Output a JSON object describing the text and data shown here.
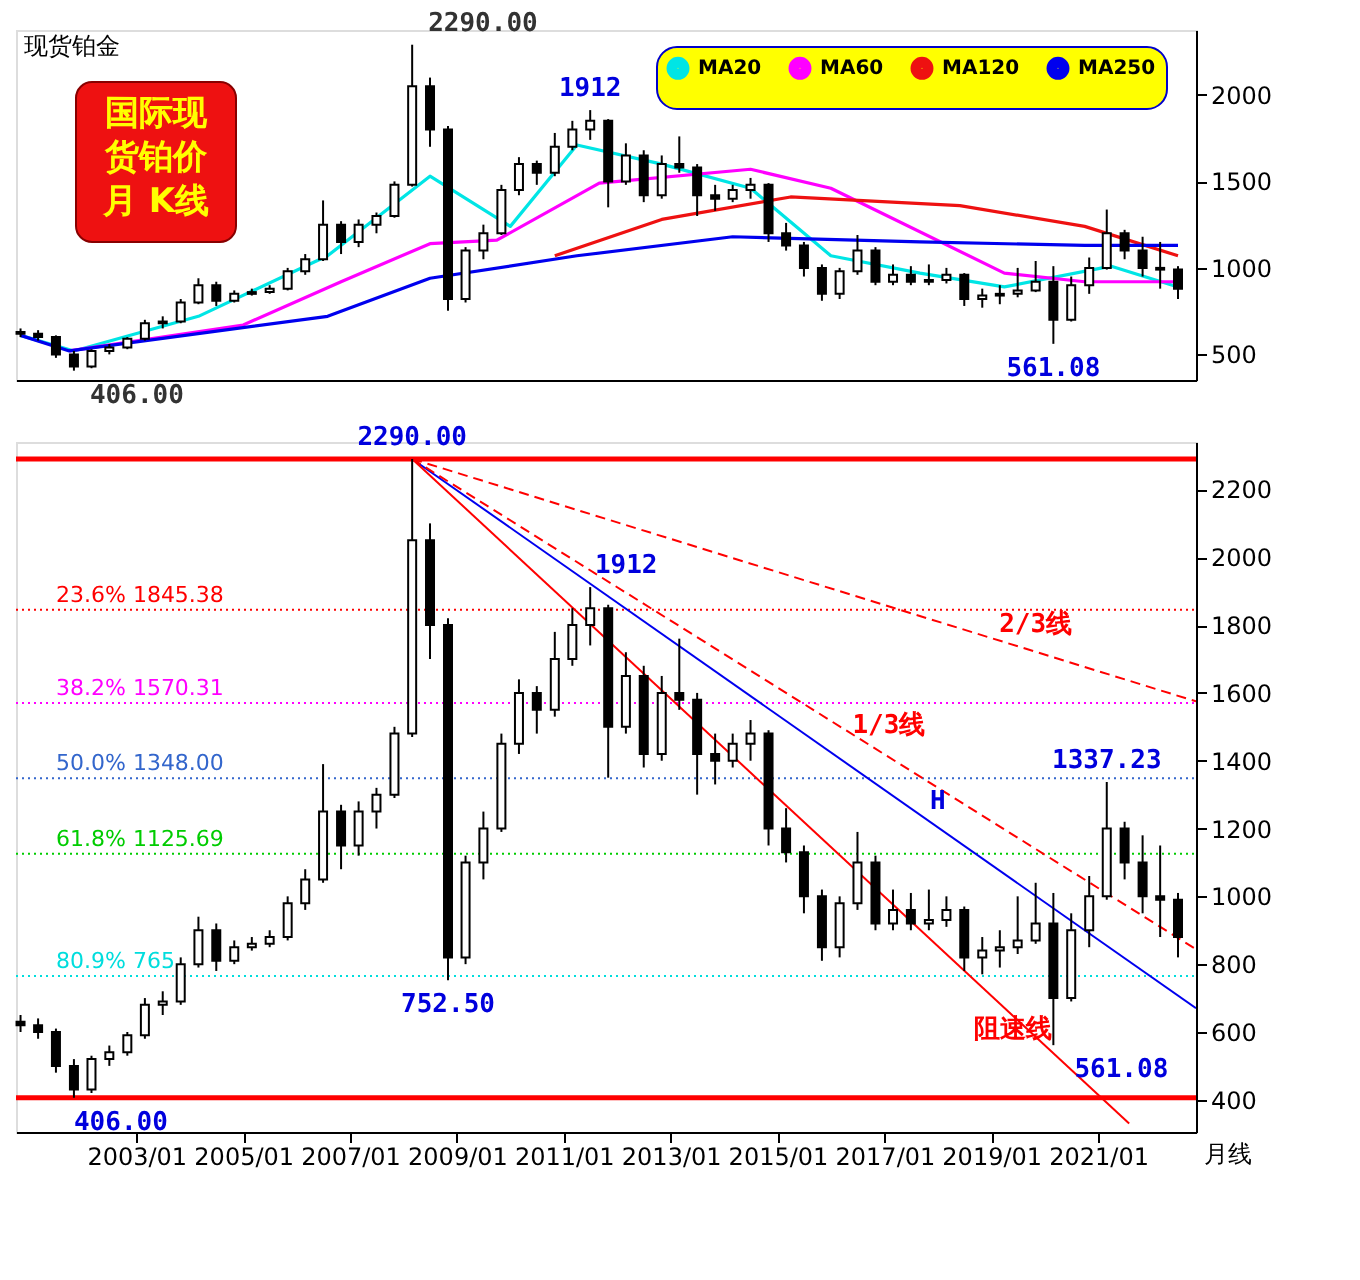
{
  "chart_data": [
    {
      "type": "candlestick",
      "title": "现货铂金",
      "x": [
        "2000-11",
        "2001-03",
        "2001-07",
        "2001-11",
        "2002-03",
        "2002-07",
        "2002-11",
        "2003-03",
        "2003-07",
        "2003-11",
        "2004-03",
        "2004-07",
        "2004-11",
        "2005-03",
        "2005-07",
        "2005-11",
        "2006-03",
        "2006-07",
        "2006-11",
        "2007-03",
        "2007-07",
        "2007-11",
        "2008-03",
        "2008-07",
        "2008-11",
        "2009-03",
        "2009-07",
        "2009-11",
        "2010-03",
        "2010-07",
        "2010-11",
        "2011-03",
        "2011-07",
        "2011-11",
        "2012-03",
        "2012-07",
        "2012-11",
        "2013-03",
        "2013-07",
        "2013-11",
        "2014-03",
        "2014-07",
        "2014-11",
        "2015-03",
        "2015-07",
        "2015-11",
        "2016-03",
        "2016-07",
        "2016-11",
        "2017-03",
        "2017-07",
        "2017-11",
        "2018-03",
        "2018-07",
        "2018-11",
        "2019-03",
        "2019-07",
        "2019-11",
        "2020-03",
        "2020-07",
        "2020-11",
        "2021-03",
        "2021-07",
        "2021-11",
        "2022-03",
        "2022-07"
      ],
      "ohlc": [
        [
          630,
          650,
          600,
          620
        ],
        [
          620,
          640,
          580,
          600
        ],
        [
          600,
          610,
          480,
          500
        ],
        [
          500,
          520,
          406,
          430
        ],
        [
          430,
          530,
          420,
          520
        ],
        [
          520,
          560,
          500,
          540
        ],
        [
          540,
          600,
          530,
          590
        ],
        [
          590,
          700,
          580,
          680
        ],
        [
          680,
          720,
          650,
          690
        ],
        [
          690,
          820,
          680,
          800
        ],
        [
          800,
          940,
          790,
          900
        ],
        [
          900,
          920,
          780,
          810
        ],
        [
          810,
          870,
          800,
          850
        ],
        [
          850,
          880,
          840,
          860
        ],
        [
          860,
          900,
          850,
          880
        ],
        [
          880,
          1000,
          870,
          980
        ],
        [
          980,
          1080,
          960,
          1050
        ],
        [
          1050,
          1390,
          1040,
          1250
        ],
        [
          1250,
          1270,
          1080,
          1150
        ],
        [
          1150,
          1280,
          1120,
          1250
        ],
        [
          1250,
          1320,
          1200,
          1300
        ],
        [
          1300,
          1500,
          1290,
          1480
        ],
        [
          1480,
          2290,
          1470,
          2050
        ],
        [
          2050,
          2100,
          1700,
          1800
        ],
        [
          1800,
          1820,
          752.5,
          820
        ],
        [
          820,
          1120,
          800,
          1100
        ],
        [
          1100,
          1250,
          1050,
          1200
        ],
        [
          1200,
          1480,
          1190,
          1450
        ],
        [
          1450,
          1640,
          1420,
          1600
        ],
        [
          1600,
          1620,
          1480,
          1550
        ],
        [
          1550,
          1780,
          1530,
          1700
        ],
        [
          1700,
          1850,
          1680,
          1800
        ],
        [
          1800,
          1912,
          1740,
          1850
        ],
        [
          1850,
          1860,
          1350,
          1500
        ],
        [
          1500,
          1720,
          1480,
          1650
        ],
        [
          1650,
          1680,
          1380,
          1420
        ],
        [
          1420,
          1650,
          1400,
          1600
        ],
        [
          1600,
          1760,
          1550,
          1580
        ],
        [
          1580,
          1600,
          1300,
          1420
        ],
        [
          1420,
          1480,
          1330,
          1400
        ],
        [
          1400,
          1480,
          1380,
          1450
        ],
        [
          1450,
          1520,
          1400,
          1480
        ],
        [
          1480,
          1490,
          1150,
          1200
        ],
        [
          1200,
          1260,
          1100,
          1130
        ],
        [
          1130,
          1150,
          950,
          1000
        ],
        [
          1000,
          1020,
          810,
          850
        ],
        [
          850,
          1000,
          820,
          980
        ],
        [
          980,
          1190,
          960,
          1100
        ],
        [
          1100,
          1120,
          900,
          920
        ],
        [
          920,
          1020,
          900,
          960
        ],
        [
          960,
          1010,
          900,
          920
        ],
        [
          920,
          1020,
          900,
          930
        ],
        [
          930,
          1000,
          910,
          960
        ],
        [
          960,
          970,
          780,
          820
        ],
        [
          820,
          880,
          770,
          840
        ],
        [
          840,
          900,
          790,
          850
        ],
        [
          850,
          1000,
          830,
          870
        ],
        [
          870,
          1040,
          860,
          920
        ],
        [
          920,
          1010,
          561.08,
          700
        ],
        [
          700,
          950,
          690,
          900
        ],
        [
          900,
          1060,
          850,
          1000
        ],
        [
          1000,
          1337.23,
          990,
          1200
        ],
        [
          1200,
          1220,
          1050,
          1100
        ],
        [
          1100,
          1180,
          950,
          1000
        ],
        [
          1000,
          1150,
          880,
          990
        ],
        [
          990,
          1010,
          820,
          880
        ]
      ],
      "series": [
        {
          "name": "MA20",
          "type": "line",
          "color": "#00e5e5",
          "x": [
            "2000-11",
            "2001-11",
            "2004-03",
            "2006-08",
            "2008-07",
            "2010-01",
            "2011-04",
            "2012-11",
            "2014-07",
            "2016-01",
            "2017-09",
            "2019-04",
            "2021-04",
            "2022-07"
          ],
          "values": [
            610,
            520,
            720,
            1070,
            1530,
            1240,
            1710,
            1600,
            1460,
            1070,
            970,
            890,
            1010,
            890
          ]
        },
        {
          "name": "MA60",
          "type": "line",
          "color": "#ff00ff",
          "x": [
            "2001-10",
            "2005-01",
            "2006-11",
            "2008-07",
            "2009-10",
            "2011-09",
            "2014-07",
            "2016-01",
            "2019-04",
            "2020-10",
            "2022-07"
          ],
          "values": [
            520,
            670,
            920,
            1140,
            1160,
            1490,
            1570,
            1460,
            970,
            920,
            920
          ]
        },
        {
          "name": "MA120",
          "type": "line",
          "color": "#ee1111",
          "x": [
            "2010-11",
            "2012-11",
            "2015-04",
            "2018-06",
            "2020-10",
            "2022-07"
          ],
          "values": [
            1070,
            1280,
            1410,
            1360,
            1240,
            1070
          ]
        },
        {
          "name": "MA250",
          "type": "line",
          "color": "#0000ee",
          "x": [
            "2000-11",
            "2001-10",
            "2006-08",
            "2008-07",
            "2011-04",
            "2014-03",
            "2017-09",
            "2020-10",
            "2022-07"
          ],
          "values": [
            610,
            520,
            720,
            940,
            1070,
            1180,
            1150,
            1130,
            1130
          ]
        }
      ],
      "xlim": [
        "2000-10",
        "2022-11"
      ],
      "ylim": [
        352,
        2375
      ],
      "yticks": [
        500,
        1000,
        1500,
        2000
      ],
      "tick_labels": "y",
      "legend": "top right",
      "annotations": [
        "国际现货铂价月  K线",
        {
          "text": "2290.00",
          "x": "2008-03",
          "y": 2290
        },
        {
          "text": "1912",
          "x": "2011-07",
          "y": 1912
        },
        {
          "text": "406.00",
          "x": "2001-11",
          "y": 406
        },
        {
          "text": "561.08",
          "x": "2020-03",
          "y": 561.08
        }
      ]
    },
    {
      "type": "candlestick",
      "x": [
        "2000-11",
        "2001-03",
        "2001-07",
        "2001-11",
        "2002-03",
        "2002-07",
        "2002-11",
        "2003-03",
        "2003-07",
        "2003-11",
        "2004-03",
        "2004-07",
        "2004-11",
        "2005-03",
        "2005-07",
        "2005-11",
        "2006-03",
        "2006-07",
        "2006-11",
        "2007-03",
        "2007-07",
        "2007-11",
        "2008-03",
        "2008-07",
        "2008-11",
        "2009-03",
        "2009-07",
        "2009-11",
        "2010-03",
        "2010-07",
        "2010-11",
        "2011-03",
        "2011-07",
        "2011-11",
        "2012-03",
        "2012-07",
        "2012-11",
        "2013-03",
        "2013-07",
        "2013-11",
        "2014-03",
        "2014-07",
        "2014-11",
        "2015-03",
        "2015-07",
        "2015-11",
        "2016-03",
        "2016-07",
        "2016-11",
        "2017-03",
        "2017-07",
        "2017-11",
        "2018-03",
        "2018-07",
        "2018-11",
        "2019-03",
        "2019-07",
        "2019-11",
        "2020-03",
        "2020-07",
        "2020-11",
        "2021-03",
        "2021-07",
        "2021-11",
        "2022-03",
        "2022-07"
      ],
      "ohlc": [
        [
          630,
          650,
          600,
          620
        ],
        [
          620,
          640,
          580,
          600
        ],
        [
          600,
          610,
          480,
          500
        ],
        [
          500,
          520,
          406,
          430
        ],
        [
          430,
          530,
          420,
          520
        ],
        [
          520,
          560,
          500,
          540
        ],
        [
          540,
          600,
          530,
          590
        ],
        [
          590,
          700,
          580,
          680
        ],
        [
          680,
          720,
          650,
          690
        ],
        [
          690,
          820,
          680,
          800
        ],
        [
          800,
          940,
          790,
          900
        ],
        [
          900,
          920,
          780,
          810
        ],
        [
          810,
          870,
          800,
          850
        ],
        [
          850,
          880,
          840,
          860
        ],
        [
          860,
          900,
          850,
          880
        ],
        [
          880,
          1000,
          870,
          980
        ],
        [
          980,
          1080,
          960,
          1050
        ],
        [
          1050,
          1390,
          1040,
          1250
        ],
        [
          1250,
          1270,
          1080,
          1150
        ],
        [
          1150,
          1280,
          1120,
          1250
        ],
        [
          1250,
          1320,
          1200,
          1300
        ],
        [
          1300,
          1500,
          1290,
          1480
        ],
        [
          1480,
          2290,
          1470,
          2050
        ],
        [
          2050,
          2100,
          1700,
          1800
        ],
        [
          1800,
          1820,
          752.5,
          820
        ],
        [
          820,
          1120,
          800,
          1100
        ],
        [
          1100,
          1250,
          1050,
          1200
        ],
        [
          1200,
          1480,
          1190,
          1450
        ],
        [
          1450,
          1640,
          1420,
          1600
        ],
        [
          1600,
          1620,
          1480,
          1550
        ],
        [
          1550,
          1780,
          1530,
          1700
        ],
        [
          1700,
          1850,
          1680,
          1800
        ],
        [
          1800,
          1912,
          1740,
          1850
        ],
        [
          1850,
          1860,
          1350,
          1500
        ],
        [
          1500,
          1720,
          1480,
          1650
        ],
        [
          1650,
          1680,
          1380,
          1420
        ],
        [
          1420,
          1650,
          1400,
          1600
        ],
        [
          1600,
          1760,
          1550,
          1580
        ],
        [
          1580,
          1600,
          1300,
          1420
        ],
        [
          1420,
          1480,
          1330,
          1400
        ],
        [
          1400,
          1480,
          1380,
          1450
        ],
        [
          1450,
          1520,
          1400,
          1480
        ],
        [
          1480,
          1490,
          1150,
          1200
        ],
        [
          1200,
          1260,
          1100,
          1130
        ],
        [
          1130,
          1150,
          950,
          1000
        ],
        [
          1000,
          1020,
          810,
          850
        ],
        [
          850,
          1000,
          820,
          980
        ],
        [
          980,
          1190,
          960,
          1100
        ],
        [
          1100,
          1120,
          900,
          920
        ],
        [
          920,
          1020,
          900,
          960
        ],
        [
          960,
          1010,
          900,
          920
        ],
        [
          920,
          1020,
          900,
          930
        ],
        [
          930,
          1000,
          910,
          960
        ],
        [
          960,
          970,
          780,
          820
        ],
        [
          820,
          880,
          770,
          840
        ],
        [
          840,
          900,
          790,
          850
        ],
        [
          850,
          1000,
          830,
          870
        ],
        [
          870,
          1040,
          860,
          920
        ],
        [
          920,
          1010,
          561.08,
          700
        ],
        [
          700,
          950,
          690,
          900
        ],
        [
          900,
          1060,
          850,
          1000
        ],
        [
          1000,
          1337.23,
          990,
          1200
        ],
        [
          1200,
          1220,
          1050,
          1100
        ],
        [
          1100,
          1180,
          950,
          1000
        ],
        [
          1000,
          1150,
          880,
          990
        ],
        [
          990,
          1010,
          820,
          880
        ]
      ],
      "series": [
        {
          "type": "line",
          "color": "#0000ee",
          "line_style": "solid",
          "x": [
            "2008-03",
            "2022-11"
          ],
          "values": [
            2290,
            670
          ]
        },
        {
          "type": "line",
          "color": "#ff0000",
          "line_style": "solid",
          "x": [
            "2008-03",
            "2021-08"
          ],
          "values": [
            2290,
            330
          ]
        },
        {
          "type": "line",
          "color": "#ff0000",
          "line_style": "dashed",
          "x": [
            "2008-03",
            "2022-11"
          ],
          "values": [
            2290,
            844
          ]
        },
        {
          "type": "line",
          "color": "#ff0000",
          "line_style": "dashed",
          "x": [
            "2008-03",
            "2022-11"
          ],
          "values": [
            2290,
            1575
          ]
        }
      ],
      "xlim": [
        "2000-10",
        "2022-11"
      ],
      "ylim": [
        305,
        2340
      ],
      "yticks": [
        400,
        600,
        800,
        1000,
        1200,
        1400,
        1600,
        1800,
        2000,
        2200
      ],
      "xticks": [
        {
          "value": "2003-01",
          "label": "2003/01"
        },
        {
          "value": "2005-01",
          "label": "2005/01"
        },
        {
          "value": "2007-01",
          "label": "2007/01"
        },
        {
          "value": "2009-01",
          "label": "2009/01"
        },
        {
          "value": "2011-01",
          "label": "2011/01"
        },
        {
          "value": "2013-01",
          "label": "2013/01"
        },
        {
          "value": "2015-01",
          "label": "2015/01"
        },
        {
          "value": "2017-01",
          "label": "2017/01"
        },
        {
          "value": "2019-01",
          "label": "2019/01"
        },
        {
          "value": "2021-01",
          "label": "2021/01"
        }
      ],
      "ref_lines": [
        {
          "axis": "y",
          "value": 2290,
          "color": "#ff0000",
          "line_style": "solid"
        },
        {
          "axis": "y",
          "value": 406,
          "color": "#ff0000",
          "line_style": "solid"
        },
        {
          "axis": "y",
          "value": 1845.38,
          "label": "23.6%  1845.38",
          "color": "#ff0000",
          "line_style": "dotted"
        },
        {
          "axis": "y",
          "value": 1570.31,
          "label": "38.2%  1570.31",
          "color": "#ff00ff",
          "line_style": "dotted"
        },
        {
          "axis": "y",
          "value": 1348,
          "label": "50.0%  1348.00",
          "color": "#3366cc",
          "line_style": "dotted"
        },
        {
          "axis": "y",
          "value": 1125.69,
          "label": "61.8%  1125.69",
          "color": "#00cc00",
          "line_style": "dotted"
        },
        {
          "axis": "y",
          "value": 765,
          "label": "80.9%  765",
          "color": "#00dddd",
          "line_style": "dotted"
        }
      ],
      "annotations": [
        "月线",
        {
          "text": "2290.00",
          "x": "2008-03",
          "y": 2290
        },
        {
          "text": "1912",
          "x": "2011-07",
          "y": 1912
        },
        {
          "text": "752.50",
          "x": "2008-11",
          "y": 752.5
        },
        {
          "text": "406.00",
          "x": "2001-11",
          "y": 406
        },
        {
          "text": "561.08",
          "x": "2020-03",
          "y": 561.08
        },
        {
          "text": "1337.23",
          "x": "2021-03",
          "y": 1337.23
        },
        {
          "text": "1/3线",
          "x": "2017-02",
          "y": 1440
        },
        {
          "text": "2/3线",
          "x": "2019-11",
          "y": 1739
        },
        {
          "text": "阻速线",
          "x": "2019-06",
          "y": 681
        },
        {
          "text": "H",
          "x": "2018-01",
          "y": 1216
        }
      ]
    }
  ]
}
